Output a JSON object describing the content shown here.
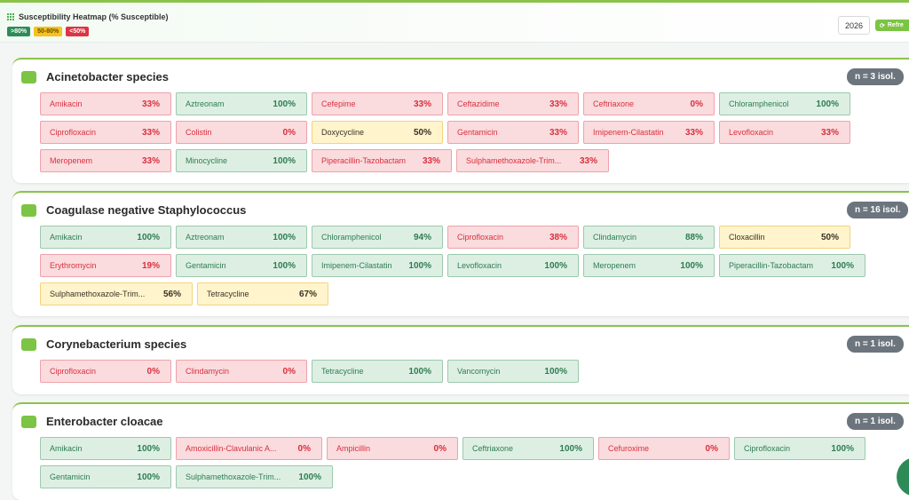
{
  "header": {
    "title": "Susceptibility Heatmap (% Susceptible)",
    "legend": [
      ">80%",
      "50-80%",
      "<50%"
    ],
    "year": "2026",
    "refresh_label": "Refre"
  },
  "colors": {
    "accent": "#8bc34a",
    "high": "#2e8b57",
    "mid": "#f6c21c",
    "low": "#dc3545",
    "badge": "#6c757d"
  },
  "organisms": [
    {
      "name": "Acinetobacter species",
      "count": "n = 3 isol.",
      "cells": [
        {
          "ab": "Amikacin",
          "pct": "33%",
          "level": "low"
        },
        {
          "ab": "Aztreonam",
          "pct": "100%",
          "level": "high"
        },
        {
          "ab": "Cefepime",
          "pct": "33%",
          "level": "low"
        },
        {
          "ab": "Ceftazidime",
          "pct": "33%",
          "level": "low"
        },
        {
          "ab": "Ceftriaxone",
          "pct": "0%",
          "level": "low"
        },
        {
          "ab": "Chloramphenicol",
          "pct": "100%",
          "level": "high"
        },
        {
          "ab": "Ciprofloxacin",
          "pct": "33%",
          "level": "low"
        },
        {
          "ab": "Colistin",
          "pct": "0%",
          "level": "low"
        },
        {
          "ab": "Doxycycline",
          "pct": "50%",
          "level": "mid"
        },
        {
          "ab": "Gentamicin",
          "pct": "33%",
          "level": "low"
        },
        {
          "ab": "Imipenem-Cilastatin",
          "pct": "33%",
          "level": "low"
        },
        {
          "ab": "Levofloxacin",
          "pct": "33%",
          "level": "low"
        },
        {
          "ab": "Meropenem",
          "pct": "33%",
          "level": "low"
        },
        {
          "ab": "Minocycline",
          "pct": "100%",
          "level": "high"
        },
        {
          "ab": "Piperacillin-Tazobactam",
          "pct": "33%",
          "level": "low",
          "wide": "w158"
        },
        {
          "ab": "Sulphamethoxazole-Trim...",
          "pct": "33%",
          "level": "low",
          "wide": "w172"
        }
      ]
    },
    {
      "name": "Coagulase negative Staphylococcus",
      "count": "n = 16 isol.",
      "cells": [
        {
          "ab": "Amikacin",
          "pct": "100%",
          "level": "high"
        },
        {
          "ab": "Aztreonam",
          "pct": "100%",
          "level": "high"
        },
        {
          "ab": "Chloramphenicol",
          "pct": "94%",
          "level": "high"
        },
        {
          "ab": "Ciprofloxacin",
          "pct": "38%",
          "level": "low"
        },
        {
          "ab": "Clindamycin",
          "pct": "88%",
          "level": "high"
        },
        {
          "ab": "Cloxacillin",
          "pct": "50%",
          "level": "mid"
        },
        {
          "ab": "Erythromycin",
          "pct": "19%",
          "level": "low"
        },
        {
          "ab": "Gentamicin",
          "pct": "100%",
          "level": "high"
        },
        {
          "ab": "Imipenem-Cilastatin",
          "pct": "100%",
          "level": "high"
        },
        {
          "ab": "Levofloxacin",
          "pct": "100%",
          "level": "high"
        },
        {
          "ab": "Meropenem",
          "pct": "100%",
          "level": "high"
        },
        {
          "ab": "Piperacillin-Tazobactam",
          "pct": "100%",
          "level": "high",
          "wide": "w165"
        },
        {
          "ab": "Sulphamethoxazole-Trim...",
          "pct": "56%",
          "level": "mid",
          "wide": "w172"
        },
        {
          "ab": "Tetracycline",
          "pct": "67%",
          "level": "mid"
        }
      ]
    },
    {
      "name": "Corynebacterium species",
      "count": "n = 1 isol.",
      "cells": [
        {
          "ab": "Ciprofloxacin",
          "pct": "0%",
          "level": "low"
        },
        {
          "ab": "Clindamycin",
          "pct": "0%",
          "level": "low"
        },
        {
          "ab": "Tetracycline",
          "pct": "100%",
          "level": "high"
        },
        {
          "ab": "Vancomycin",
          "pct": "100%",
          "level": "high"
        }
      ]
    },
    {
      "name": "Enterobacter cloacae",
      "count": "n = 1 isol.",
      "cells": [
        {
          "ab": "Amikacin",
          "pct": "100%",
          "level": "high"
        },
        {
          "ab": "Amoxicillin-Clavulanic A...",
          "pct": "0%",
          "level": "low",
          "wide": "w165"
        },
        {
          "ab": "Ampicillin",
          "pct": "0%",
          "level": "low"
        },
        {
          "ab": "Ceftriaxone",
          "pct": "100%",
          "level": "high"
        },
        {
          "ab": "Cefuroxime",
          "pct": "0%",
          "level": "low"
        },
        {
          "ab": "Ciprofloxacin",
          "pct": "100%",
          "level": "high"
        },
        {
          "ab": "Gentamicin",
          "pct": "100%",
          "level": "high"
        },
        {
          "ab": "Sulphamethoxazole-Trim...",
          "pct": "100%",
          "level": "high",
          "wide": "w177"
        }
      ]
    }
  ]
}
